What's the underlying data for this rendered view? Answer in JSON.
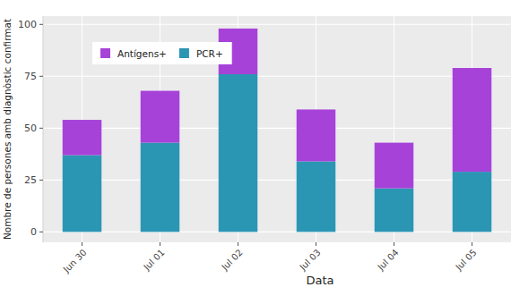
{
  "chart_data": {
    "type": "bar",
    "stacked": true,
    "grid": true,
    "legend": "top-left",
    "x_label": "Data",
    "y_label": "Nombre de persones amb diagnòstic confirmat",
    "categories": [
      "Jun 30",
      "Jul 01",
      "Jul 02",
      "Jul 03",
      "Jul 04",
      "Jul 05"
    ],
    "series": [
      {
        "name": "PCR+",
        "color": "#2b96b4",
        "values": [
          37,
          43,
          76,
          34,
          21,
          29
        ]
      },
      {
        "name": "Antígens+",
        "color": "#a742d9",
        "values": [
          17,
          25,
          22,
          25,
          22,
          50
        ]
      }
    ],
    "ylim": [
      -5,
      104
    ],
    "yticks": [
      0,
      25,
      50,
      75,
      100
    ]
  }
}
